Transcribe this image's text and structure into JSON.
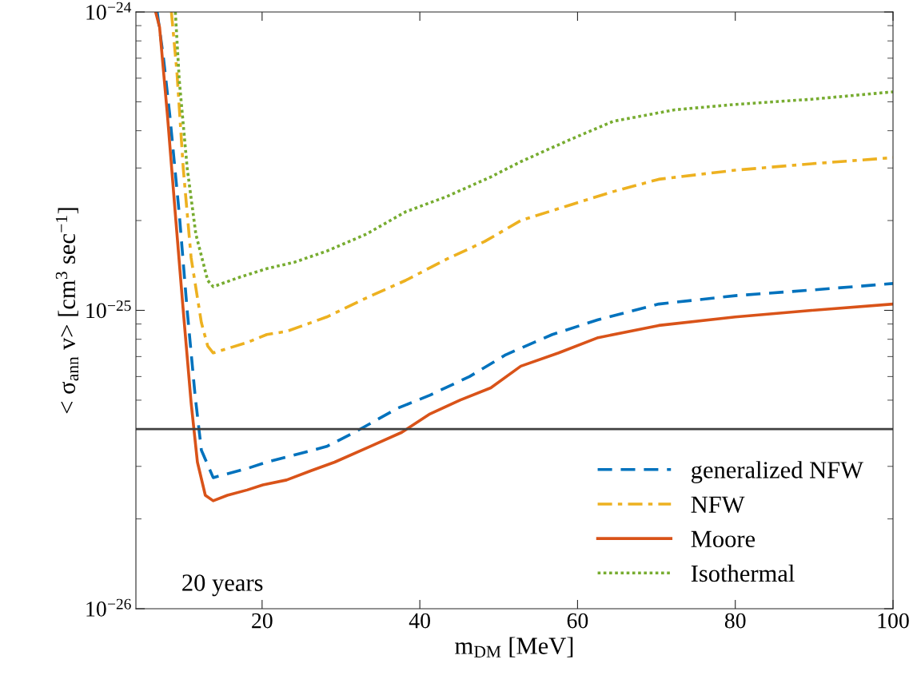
{
  "chart_data": {
    "type": "line",
    "xlabel": "m$_{DM}$ [MeV]",
    "ylabel": "< σ$_{ann}$ v> [cm$^{3}$ sec$^{−1}$]",
    "log": "y",
    "grid": false,
    "legend": "bottom right",
    "marker": "none",
    "xlim": [
      4,
      100
    ],
    "xticks": [
      20,
      40,
      60,
      80,
      100
    ],
    "ylim": [
      1e-26,
      1e-24
    ],
    "yticks": [
      {
        "value": 1e-26,
        "label": "10$^{−26}$"
      },
      {
        "value": 1e-25,
        "label": "10$^{−25}$"
      },
      {
        "value": 1e-24,
        "label": "10$^{−24}$"
      }
    ],
    "series": [
      {
        "name": "generalized NFW",
        "color": "#0072bd",
        "line_style": "dashed",
        "x": [
          6.7,
          7.5,
          8.3,
          9.5,
          10.5,
          11.5,
          12.3,
          13.8,
          18.1,
          20.6,
          24.6,
          28.2,
          31.7,
          37.2,
          41.3,
          46.3,
          50.9,
          56.8,
          62.6,
          70.3,
          80,
          89.7,
          100
        ],
        "values": [
          1e-24,
          7e-25,
          4.5e-25,
          2.1e-25,
          1e-25,
          5.2e-26,
          3.4e-26,
          2.75e-26,
          2.95e-26,
          3.1e-26,
          3.3e-26,
          3.5e-26,
          3.9e-26,
          4.7e-26,
          5.2e-26,
          6e-26,
          7.1e-26,
          8.3e-26,
          9.3e-26,
          1.05e-25,
          1.12e-25,
          1.17e-25,
          1.23e-25
        ]
      },
      {
        "name": "NFW",
        "color": "#edb120",
        "line_style": "dashdot",
        "x": [
          8.5,
          9.2,
          10,
          11,
          12.3,
          13.1,
          13.8,
          18.1,
          20.6,
          23.1,
          28.2,
          33.2,
          38.2,
          43.3,
          48.2,
          52.8,
          58.7,
          64.5,
          70.3,
          80,
          89.7,
          100
        ],
        "values": [
          1e-24,
          6.3e-25,
          3e-25,
          1.5e-25,
          9.1e-26,
          7.6e-26,
          7.2e-26,
          7.8e-26,
          8.3e-26,
          8.5e-26,
          9.5e-26,
          1.1e-25,
          1.26e-25,
          1.48e-25,
          1.7e-25,
          2e-25,
          2.24e-25,
          2.5e-25,
          2.75e-25,
          2.95e-25,
          3.1e-25,
          3.25e-25
        ]
      },
      {
        "name": "Moore",
        "color": "#d95319",
        "line_style": "solid",
        "x": [
          6.5,
          7,
          8,
          9,
          10,
          11,
          11.8,
          12.8,
          13.8,
          15.6,
          18.1,
          20.1,
          23.1,
          26.2,
          29.2,
          33.7,
          37.7,
          41.3,
          45.1,
          49,
          52.8,
          57.6,
          62.6,
          70.3,
          80,
          89.7,
          100
        ],
        "values": [
          1e-24,
          8.9e-25,
          4.5e-25,
          2.1e-25,
          1e-25,
          4.9e-26,
          3.1e-26,
          2.4e-26,
          2.3e-26,
          2.4e-26,
          2.5e-26,
          2.6e-26,
          2.7e-26,
          2.9e-26,
          3.1e-26,
          3.5e-26,
          3.9e-26,
          4.5e-26,
          5e-26,
          5.5e-26,
          6.5e-26,
          7.2e-26,
          8.1e-26,
          8.9e-26,
          9.5e-26,
          1e-25,
          1.05e-25
        ]
      },
      {
        "name": "Isothermal",
        "color": "#77ac30",
        "line_style": "dotted",
        "x": [
          9,
          9.5,
          10.5,
          11.6,
          13.1,
          13.8,
          17.1,
          20.6,
          24.1,
          28.2,
          33.2,
          38.2,
          43.3,
          49,
          52.8,
          58.7,
          64.5,
          72.3,
          80,
          89.7,
          100
        ],
        "values": [
          1e-24,
          5.9e-25,
          3e-25,
          1.8e-25,
          1.26e-25,
          1.2e-25,
          1.29e-25,
          1.38e-25,
          1.45e-25,
          1.58e-25,
          1.8e-25,
          2.14e-25,
          2.4e-25,
          2.8e-25,
          3.15e-25,
          3.7e-25,
          4.3e-25,
          4.7e-25,
          4.9e-25,
          5.1e-25,
          5.4e-25
        ]
      }
    ],
    "ref_lines": [
      {
        "axis": "y",
        "value": 4e-26,
        "color": "#404040",
        "line_style": "solid"
      }
    ],
    "annotations": [
      "20 years"
    ]
  }
}
